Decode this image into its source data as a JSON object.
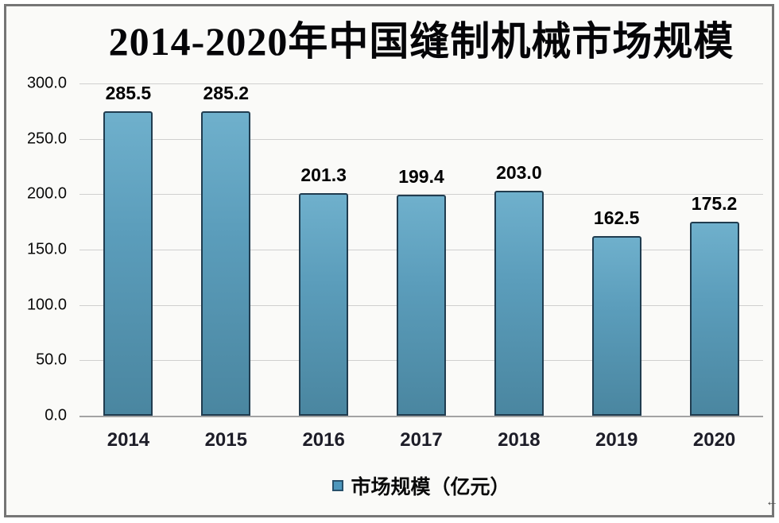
{
  "chart_data": {
    "type": "bar",
    "title": "2014-2020年中国缝制机械市场规模",
    "categories": [
      "2014",
      "2015",
      "2016",
      "2017",
      "2018",
      "2019",
      "2020"
    ],
    "values": [
      285.5,
      285.2,
      201.3,
      199.4,
      203.0,
      162.5,
      175.2
    ],
    "labels": [
      "285.5",
      "285.2",
      "201.3",
      "199.4",
      "203.0",
      "162.5",
      "175.2"
    ],
    "y_ticks": [
      "300.0",
      "250.0",
      "200.0",
      "150.0",
      "100.0",
      "50.0",
      "0.0"
    ],
    "ylim": [
      0,
      300
    ],
    "xlabel": "",
    "ylabel": "",
    "grid": true,
    "legend": "市场规模（亿元）",
    "legend_position": "bottom",
    "bar_color": "#5B9DBB",
    "bar_border_color": "#203C4F",
    "gridline_color": "#CFCFCF",
    "frame_color": "#767676"
  },
  "artifact": {
    "glyph": "←"
  }
}
